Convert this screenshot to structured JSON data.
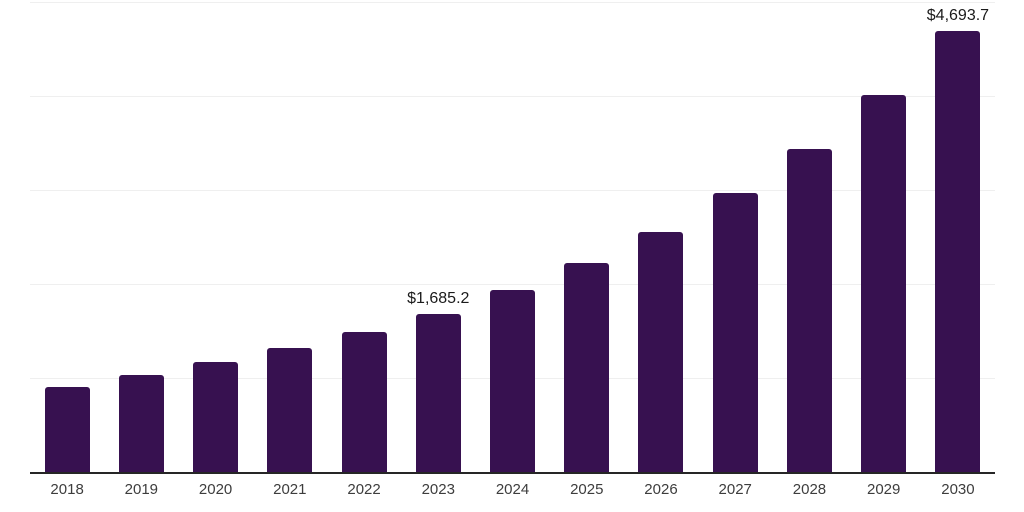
{
  "chart": {
    "colors": {
      "background": "#ffffff",
      "bar": "#371150",
      "gridline": "#efefef",
      "axis_line": "#262626",
      "axis_label": "#3d3d3d",
      "value_label": "#1b1b1b"
    }
  },
  "chart_data": {
    "type": "bar",
    "title": "",
    "xlabel": "",
    "ylabel": "",
    "categories": [
      "2018",
      "2019",
      "2020",
      "2021",
      "2022",
      "2023",
      "2024",
      "2025",
      "2026",
      "2027",
      "2028",
      "2029",
      "2030"
    ],
    "values": [
      905,
      1030,
      1170,
      1315,
      1485,
      1685.2,
      1940,
      2225,
      2550,
      2965,
      3440,
      4010,
      4693.7
    ],
    "value_labels": [
      "",
      "",
      "",
      "",
      "",
      "$1,685.2",
      "",
      "",
      "",
      "",
      "",
      "",
      "$4,693.7"
    ],
    "labeled_points": [
      {
        "category": "2023",
        "label": "$1,685.2",
        "value": 1685.2
      },
      {
        "category": "2030",
        "label": "$4,693.7",
        "value": 4693.7
      }
    ],
    "ylim": [
      0,
      5000
    ],
    "gridline_values": [
      1000,
      2000,
      3000,
      4000,
      5000
    ],
    "y_axis_tick_labels_visible": false,
    "grid": "horizontal",
    "legend_position": "none"
  }
}
